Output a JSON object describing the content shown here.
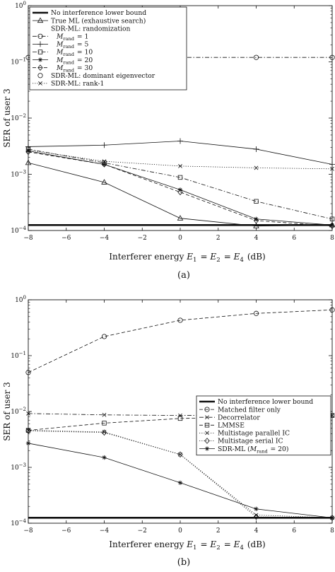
{
  "chart_data": [
    {
      "type": "line",
      "caption": "(a)",
      "xlabel": "Interferer energy E1 = E2 = E4 (dB)",
      "ylabel": "SER of user 3",
      "xlim": [
        -8,
        8
      ],
      "ylim": [
        0.0001,
        1
      ],
      "yscale": "log",
      "x_ticks": [
        "-8",
        "-6",
        "-4",
        "-2",
        "0",
        "2",
        "4",
        "6",
        "8"
      ],
      "y_ticks": [
        "10^-4",
        "10^-3",
        "10^-2",
        "10^-1",
        "10^0"
      ],
      "legend_position": "top-left",
      "legend_header": "SDR-ML: randomization",
      "x": [
        -8,
        -4,
        0,
        4,
        8
      ],
      "series": [
        {
          "name": "No interference lower bound",
          "marker": "none",
          "dash": "solid",
          "width": 2.6,
          "values": [
            0.000125,
            0.000125,
            0.000125,
            0.000125,
            0.000125
          ]
        },
        {
          "name": "True ML (exhaustive search)",
          "marker": "triangle",
          "dash": "solid",
          "width": 0.8,
          "values": [
            0.0016,
            0.00072,
            0.000165,
            0.00012,
            0.000125
          ]
        },
        {
          "name": "M_rand = 1",
          "marker": "circle",
          "dash": "dashdot",
          "width": 0.8,
          "values": [
            0.12,
            0.12,
            0.12,
            0.12,
            0.12
          ]
        },
        {
          "name": "M_rand = 5",
          "marker": "plus",
          "dash": "solid",
          "width": 0.8,
          "values": [
            0.0031,
            0.0033,
            0.0039,
            0.0028,
            0.0015
          ]
        },
        {
          "name": "M_rand = 10",
          "marker": "square",
          "dash": "dashdot",
          "width": 0.8,
          "values": [
            0.0028,
            0.0016,
            0.00088,
            0.00033,
            0.00016
          ]
        },
        {
          "name": "M_rand = 20",
          "marker": "star",
          "dash": "solid",
          "width": 0.8,
          "values": [
            0.0026,
            0.0015,
            0.00053,
            0.00016,
            0.000125
          ]
        },
        {
          "name": "M_rand = 30",
          "marker": "diamond",
          "dash": "dashed",
          "width": 0.8,
          "values": [
            0.0025,
            0.0015,
            0.00048,
            0.00015,
            0.00012
          ]
        },
        {
          "name": "SDR-ML: dominant eigenvector",
          "marker": "circle",
          "dash": "none",
          "width": 0.8,
          "values": [
            null,
            null,
            null,
            null,
            null
          ]
        },
        {
          "name": "SDR-ML: rank-1",
          "marker": "x",
          "dash": "dotted",
          "width": 0.8,
          "values": [
            0.0027,
            0.0017,
            0.0014,
            0.0013,
            0.00125
          ]
        }
      ]
    },
    {
      "type": "line",
      "caption": "(b)",
      "xlabel": "Interferer energy E1 = E2 = E4 (dB)",
      "ylabel": "SER of user 3",
      "xlim": [
        -8,
        8
      ],
      "ylim": [
        0.0001,
        1
      ],
      "yscale": "log",
      "x_ticks": [
        "-8",
        "-6",
        "-4",
        "-2",
        "0",
        "2",
        "4",
        "6",
        "8"
      ],
      "y_ticks": [
        "10^-4",
        "10^-3",
        "10^-2",
        "10^-1",
        "10^0"
      ],
      "legend_position": "top-right",
      "x": [
        -8,
        -4,
        0,
        4,
        8
      ],
      "series": [
        {
          "name": "No interference lower bound",
          "marker": "none",
          "dash": "solid",
          "width": 2.6,
          "values": [
            0.000125,
            0.000125,
            0.000125,
            0.000125,
            0.000125
          ]
        },
        {
          "name": "Matched filter only",
          "marker": "circle",
          "dash": "dashed",
          "width": 0.8,
          "values": [
            0.05,
            0.22,
            0.43,
            0.57,
            0.66
          ]
        },
        {
          "name": "Decorrelator",
          "marker": "x",
          "dash": "dashdot",
          "width": 0.8,
          "values": [
            0.0092,
            0.0087,
            0.0085,
            0.0085,
            0.0085
          ]
        },
        {
          "name": "LMMSE",
          "marker": "square",
          "dash": "dashed",
          "width": 0.8,
          "values": [
            0.0046,
            0.0062,
            0.0075,
            0.0081,
            0.0085
          ]
        },
        {
          "name": "Multistage parallel IC",
          "marker": "x",
          "dash": "dotted",
          "width": 0.8,
          "values": [
            0.0046,
            0.0043,
            0.0017,
            0.00014,
            0.000125
          ]
        },
        {
          "name": "Multistage serial IC",
          "marker": "diamond",
          "dash": "dotted",
          "width": 0.8,
          "values": [
            0.0045,
            0.0042,
            0.0017,
            0.00013,
            0.000125
          ]
        },
        {
          "name": "SDR-ML (M_rand = 20)",
          "marker": "star",
          "dash": "solid",
          "width": 0.8,
          "values": [
            0.0027,
            0.0015,
            0.00053,
            0.00018,
            0.000125
          ]
        }
      ]
    }
  ]
}
